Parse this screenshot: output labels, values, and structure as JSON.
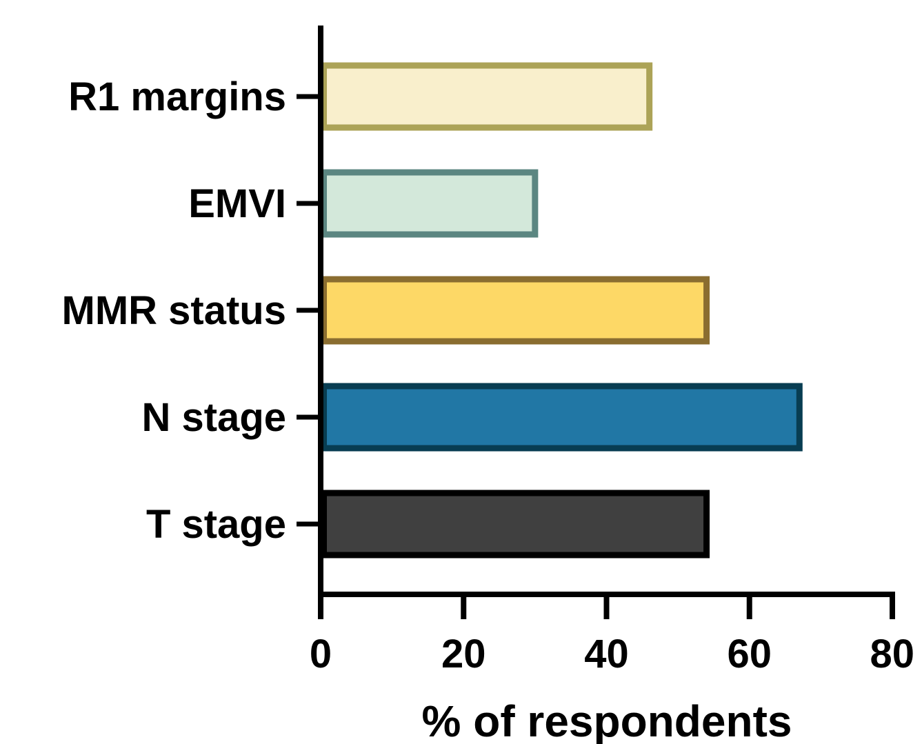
{
  "chart_data": {
    "type": "bar",
    "orientation": "horizontal",
    "categories": [
      "R1 margins",
      "EMVI",
      "MMR status",
      "N stage",
      "T stage"
    ],
    "values": [
      46,
      30,
      54,
      67,
      54
    ],
    "colors": {
      "fill": [
        "#f9efcc",
        "#d3e8da",
        "#fdd866",
        "#2177a5",
        "#404040"
      ],
      "stroke": [
        "#aca357",
        "#5b8681",
        "#8a6d30",
        "#083d52",
        "#000000"
      ]
    },
    "xlabel": "% of respondents",
    "ylabel": "",
    "title": "",
    "xlim": [
      0,
      80
    ],
    "xticks": [
      0,
      20,
      40,
      60,
      80
    ],
    "grid": false,
    "legend": "none"
  }
}
